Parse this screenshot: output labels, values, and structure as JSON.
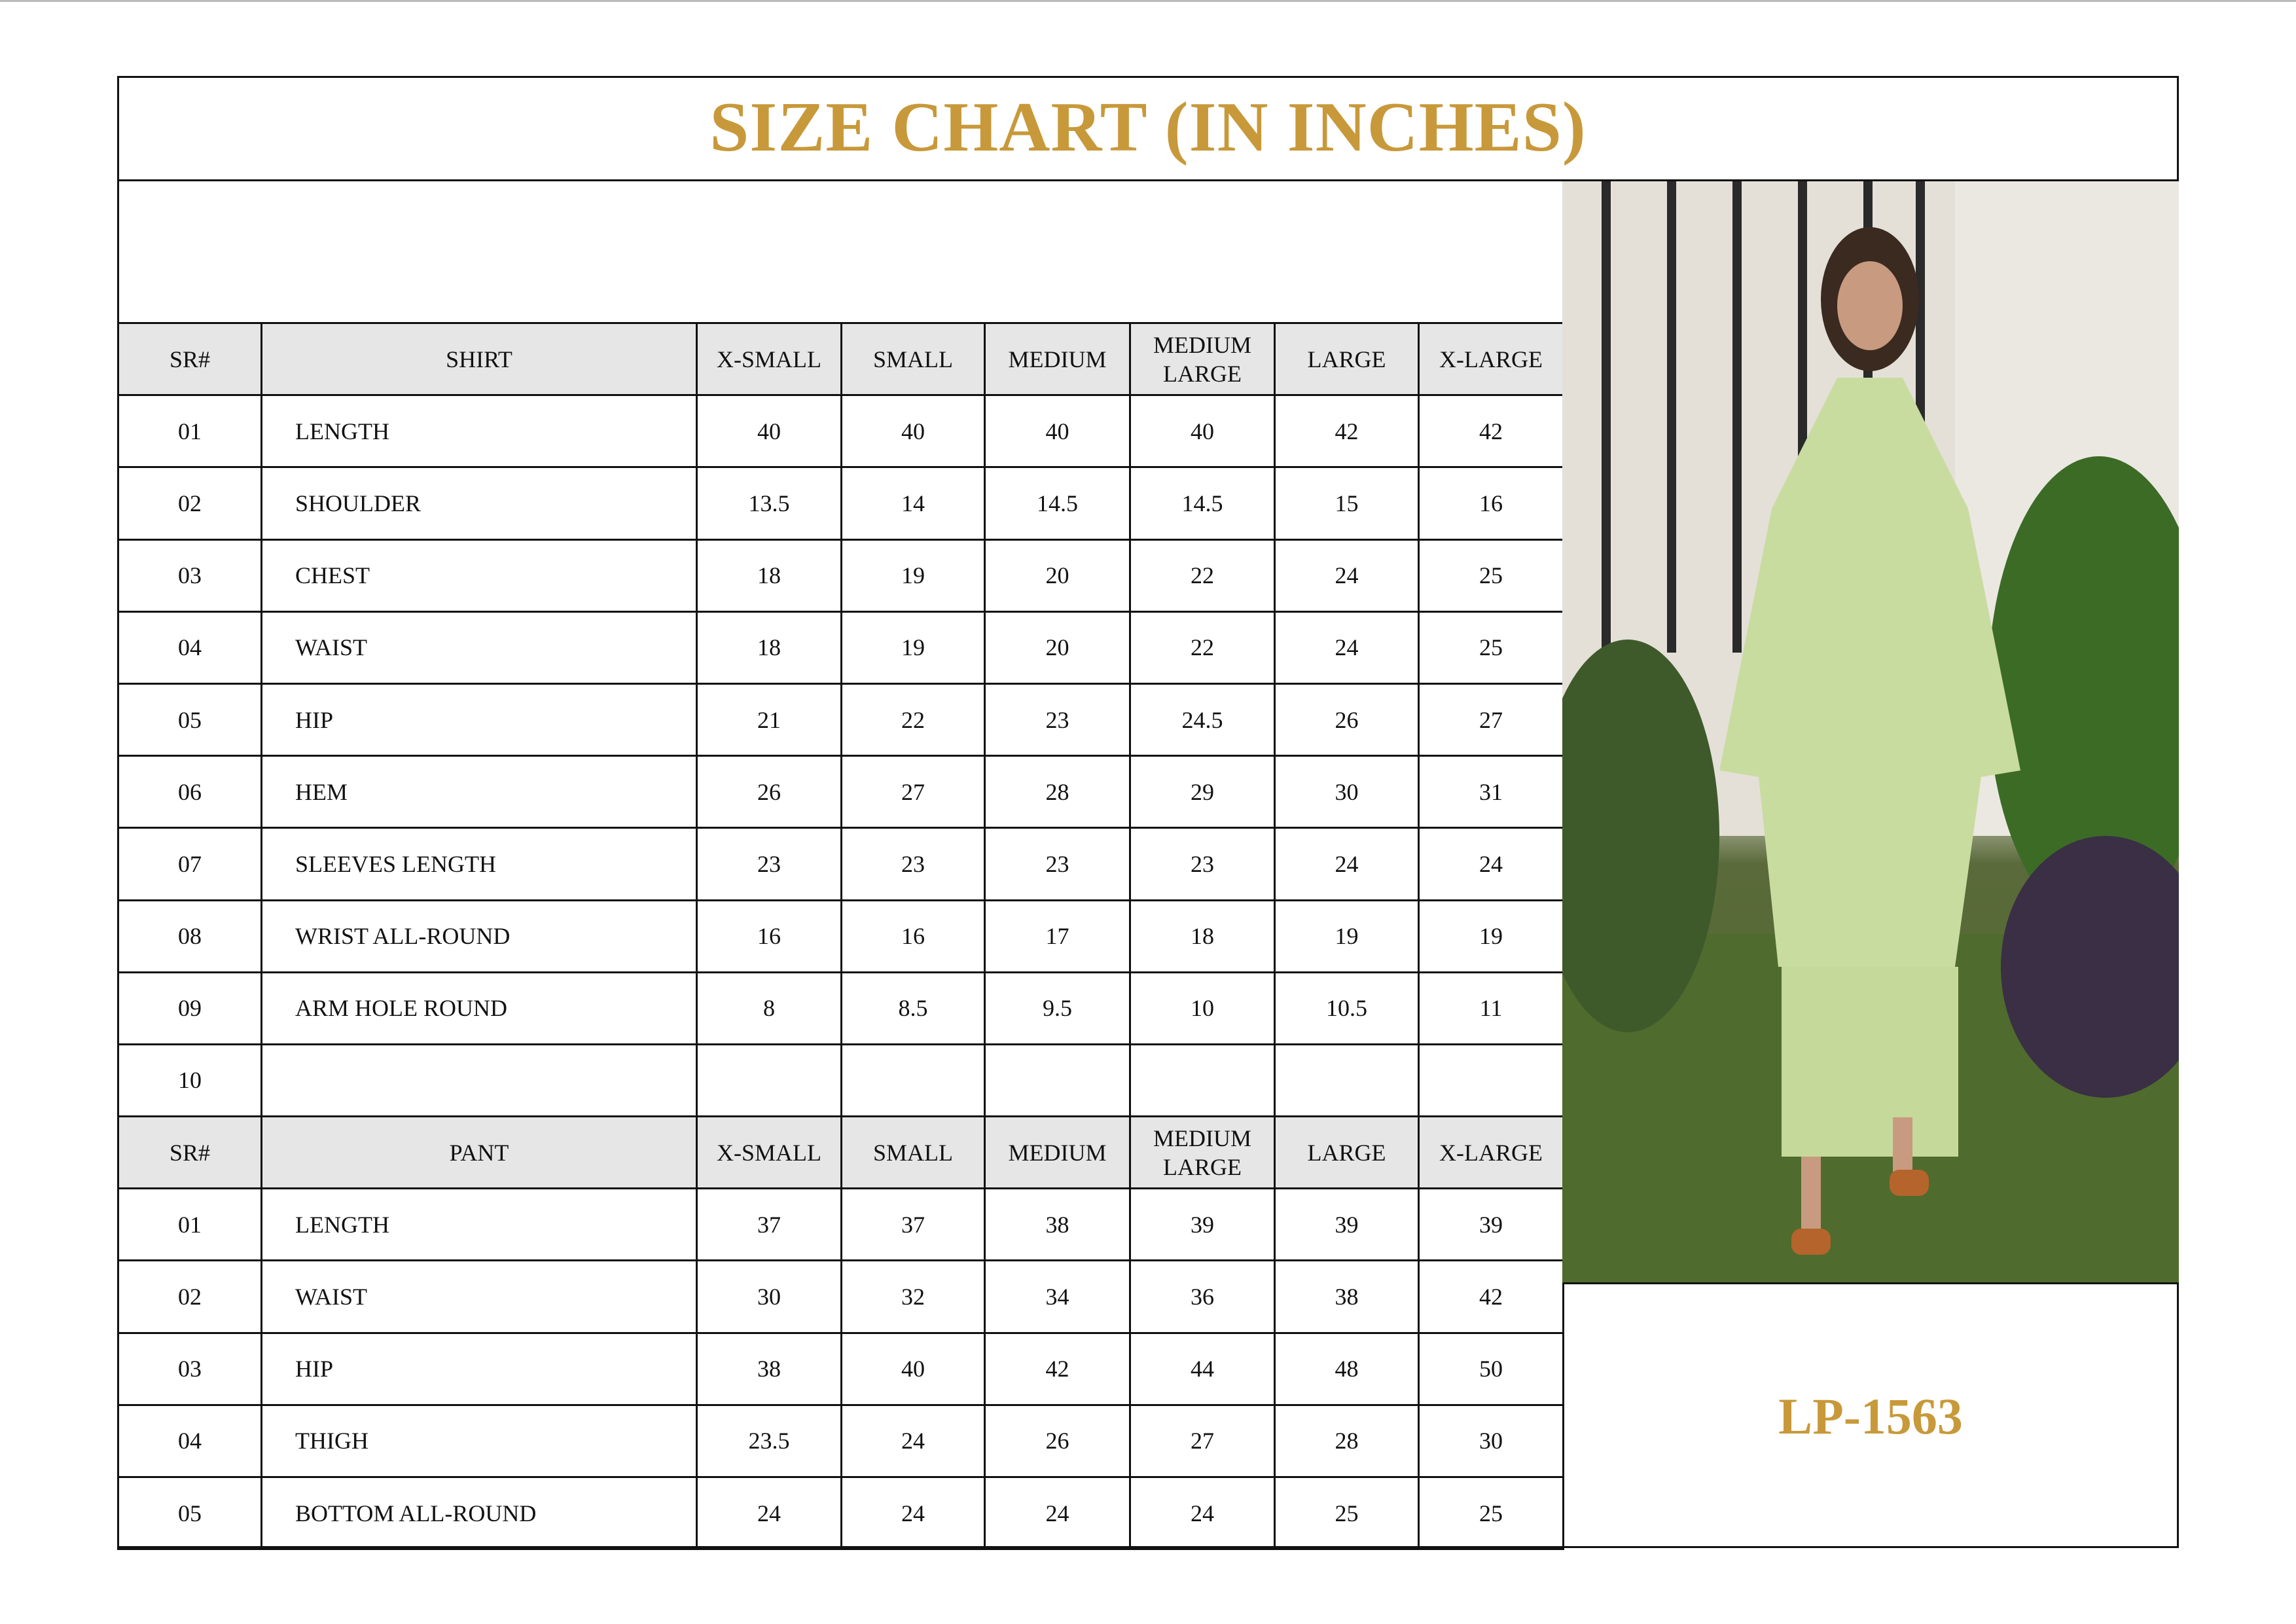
{
  "title": "SIZE CHART (IN INCHES)",
  "product_code": "LP-1563",
  "colors": {
    "accent_gold": "#c8993a",
    "header_bg": "#e6e6e6",
    "border": "#111111"
  },
  "size_columns": [
    "X-SMALL",
    "SMALL",
    "MEDIUM",
    "MEDIUM LARGE",
    "LARGE",
    "X-LARGE"
  ],
  "shirt": {
    "sr_header": "SR#",
    "header": "SHIRT",
    "rows": [
      {
        "sr": "01",
        "name": "LENGTH",
        "values": [
          "40",
          "40",
          "40",
          "40",
          "42",
          "42"
        ]
      },
      {
        "sr": "02",
        "name": "SHOULDER",
        "values": [
          "13.5",
          "14",
          "14.5",
          "14.5",
          "15",
          "16"
        ]
      },
      {
        "sr": "03",
        "name": "CHEST",
        "values": [
          "18",
          "19",
          "20",
          "22",
          "24",
          "25"
        ]
      },
      {
        "sr": "04",
        "name": "WAIST",
        "values": [
          "18",
          "19",
          "20",
          "22",
          "24",
          "25"
        ]
      },
      {
        "sr": "05",
        "name": "HIP",
        "values": [
          "21",
          "22",
          "23",
          "24.5",
          "26",
          "27"
        ]
      },
      {
        "sr": "06",
        "name": "HEM",
        "values": [
          "26",
          "27",
          "28",
          "29",
          "30",
          "31"
        ]
      },
      {
        "sr": "07",
        "name": "SLEEVES LENGTH",
        "values": [
          "23",
          "23",
          "23",
          "23",
          "24",
          "24"
        ]
      },
      {
        "sr": "08",
        "name": "WRIST ALL-ROUND",
        "values": [
          "16",
          "16",
          "17",
          "18",
          "19",
          "19"
        ]
      },
      {
        "sr": "09",
        "name": "ARM HOLE ROUND",
        "values": [
          "8",
          "8.5",
          "9.5",
          "10",
          "10.5",
          "11"
        ]
      },
      {
        "sr": "10",
        "name": "",
        "values": [
          "",
          "",
          "",
          "",
          "",
          ""
        ]
      }
    ]
  },
  "pant": {
    "sr_header": "SR#",
    "header": "PANT",
    "rows": [
      {
        "sr": "01",
        "name": "LENGTH",
        "values": [
          "37",
          "37",
          "38",
          "39",
          "39",
          "39"
        ]
      },
      {
        "sr": "02",
        "name": "WAIST",
        "values": [
          "30",
          "32",
          "34",
          "36",
          "38",
          "42"
        ]
      },
      {
        "sr": "03",
        "name": "HIP",
        "values": [
          "38",
          "40",
          "42",
          "44",
          "48",
          "50"
        ]
      },
      {
        "sr": "04",
        "name": "THIGH",
        "values": [
          "23.5",
          "24",
          "26",
          "27",
          "28",
          "30"
        ]
      },
      {
        "sr": "05",
        "name": "BOTTOM ALL-ROUND",
        "values": [
          "24",
          "24",
          "24",
          "24",
          "25",
          "25"
        ]
      }
    ]
  }
}
